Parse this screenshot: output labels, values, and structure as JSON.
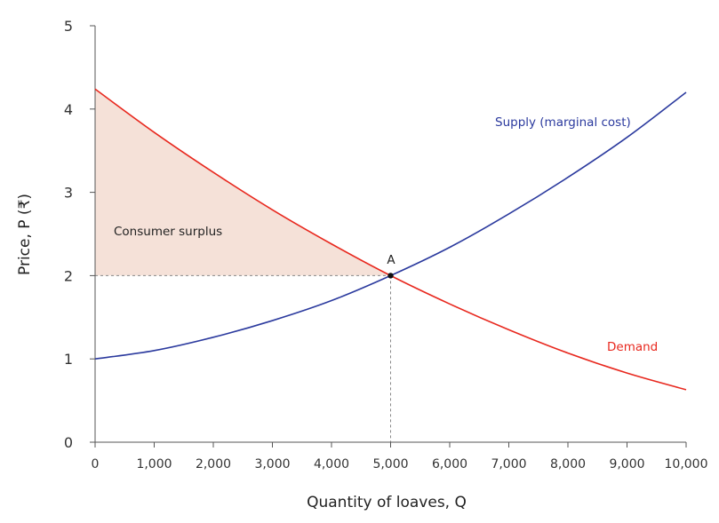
{
  "chart_data": {
    "type": "line",
    "xlabel": "Quantity of loaves, Q",
    "ylabel": "Price, P (₹)",
    "xlim": [
      0,
      10000
    ],
    "ylim": [
      0,
      5
    ],
    "x_ticks": [
      "0",
      "1,000",
      "2,000",
      "3,000",
      "4,000",
      "5,000",
      "6,000",
      "7,000",
      "8,000",
      "9,000",
      "10,000"
    ],
    "y_ticks": [
      "0",
      "1",
      "2",
      "3",
      "4",
      "5"
    ],
    "grid": false,
    "x": [
      0,
      1000,
      2000,
      3000,
      4000,
      5000,
      6000,
      7000,
      8000,
      9000,
      10000
    ],
    "series": [
      {
        "name": "Demand",
        "color": "#e8281e",
        "values": [
          4.24,
          3.72,
          3.24,
          2.79,
          2.38,
          2.0,
          1.66,
          1.35,
          1.07,
          0.83,
          0.63
        ]
      },
      {
        "name": "Supply (marginal cost)",
        "color": "#2b3a9e",
        "values": [
          1.0,
          1.1,
          1.26,
          1.46,
          1.7,
          2.0,
          2.34,
          2.74,
          3.18,
          3.66,
          4.2
        ]
      }
    ],
    "equilibrium": {
      "label": "A",
      "q": 5000,
      "p": 2
    },
    "shaded_region": {
      "label": "Consumer surplus",
      "color": "#f5e1d8"
    }
  }
}
